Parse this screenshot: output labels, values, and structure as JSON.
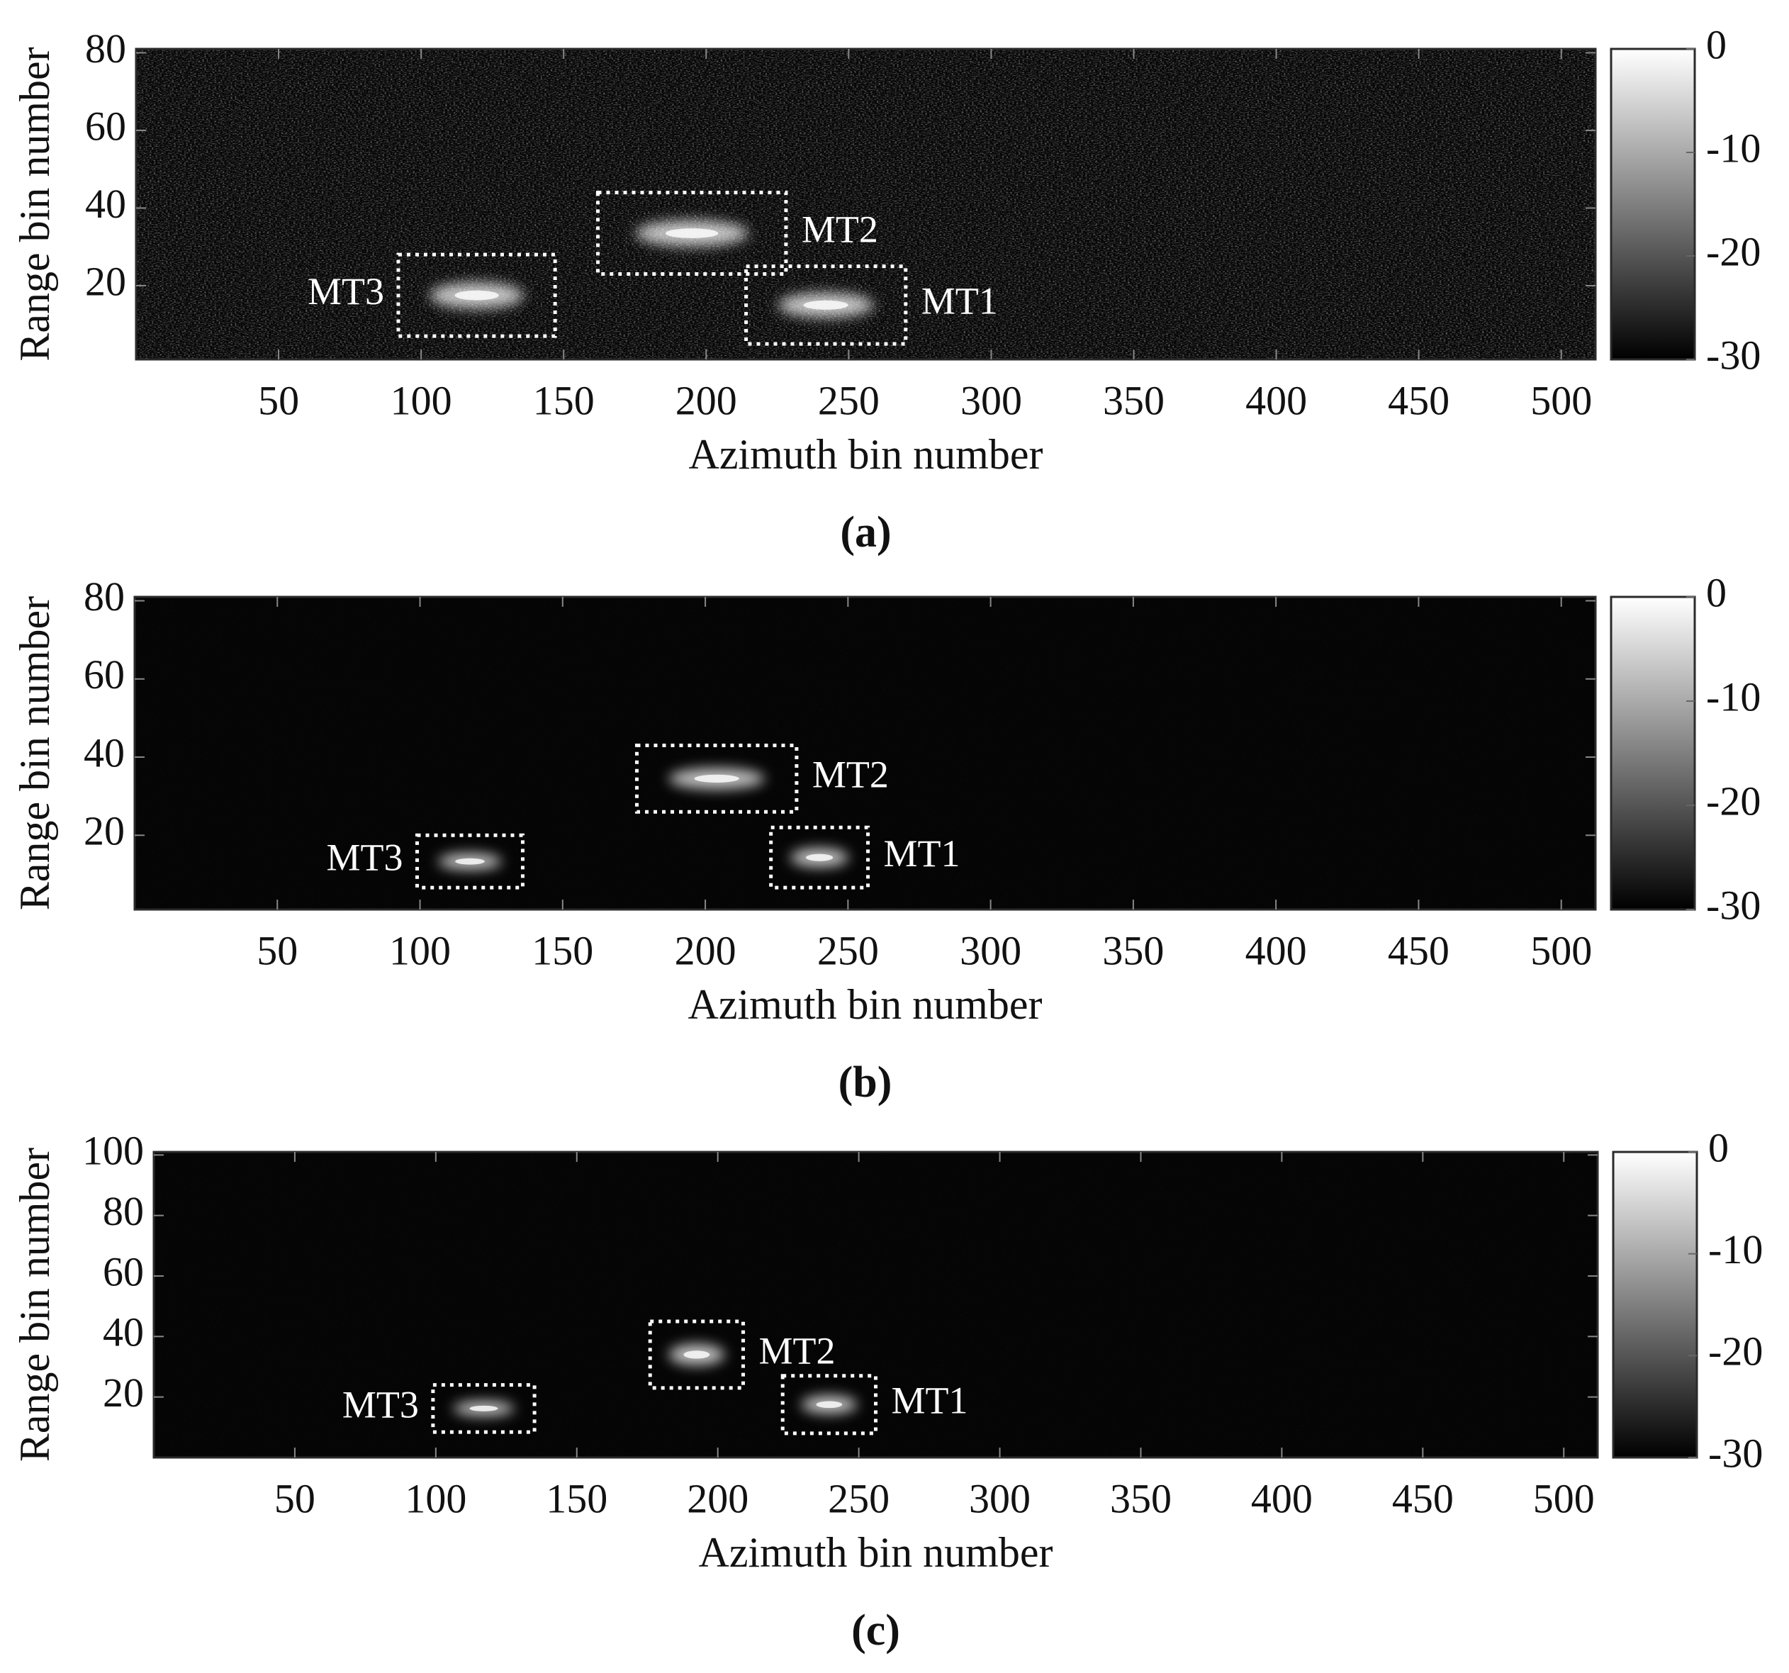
{
  "chart_data": [
    {
      "type": "heatmap",
      "caption": "(a)",
      "xlabel": "Azimuth bin number",
      "ylabel": "Range bin number",
      "xlim": [
        0,
        512
      ],
      "ylim": [
        1,
        81
      ],
      "xticks": [
        50,
        100,
        150,
        200,
        250,
        300,
        350,
        400,
        450,
        500
      ],
      "yticks": [
        20,
        40,
        60,
        80
      ],
      "colorbar": {
        "lim": [
          -30,
          0
        ],
        "ticks": [
          0,
          -10,
          -20,
          -30
        ]
      },
      "annotations": [
        {
          "text": "MT3",
          "xlim": [
            92,
            147
          ],
          "ylim": [
            7,
            28
          ],
          "label_side": "left"
        },
        {
          "text": "MT2",
          "xlim": [
            162,
            228
          ],
          "ylim": [
            23,
            44
          ],
          "label_side": "right"
        },
        {
          "text": "MT1",
          "xlim": [
            214,
            270
          ],
          "ylim": [
            5,
            25
          ],
          "label_side": "right"
        }
      ]
    },
    {
      "type": "heatmap",
      "caption": "(b)",
      "xlabel": "Azimuth bin number",
      "ylabel": "Range bin number",
      "xlim": [
        0,
        512
      ],
      "ylim": [
        1,
        81
      ],
      "xticks": [
        50,
        100,
        150,
        200,
        250,
        300,
        350,
        400,
        450,
        500
      ],
      "yticks": [
        20,
        40,
        60,
        80
      ],
      "colorbar": {
        "lim": [
          -30,
          0
        ],
        "ticks": [
          0,
          -10,
          -20,
          -30
        ]
      },
      "annotations": [
        {
          "text": "MT3",
          "xlim": [
            99,
            136
          ],
          "ylim": [
            6.6,
            20
          ],
          "label_side": "left"
        },
        {
          "text": "MT2",
          "xlim": [
            176,
            232
          ],
          "ylim": [
            26,
            43
          ],
          "label_side": "right"
        },
        {
          "text": "MT1",
          "xlim": [
            223,
            257
          ],
          "ylim": [
            6.6,
            22
          ],
          "label_side": "right"
        }
      ]
    },
    {
      "type": "heatmap",
      "caption": "(c)",
      "xlabel": "Azimuth bin number",
      "ylabel": "Range bin number",
      "xlim": [
        0,
        512
      ],
      "ylim": [
        0,
        101
      ],
      "xticks": [
        50,
        100,
        150,
        200,
        250,
        300,
        350,
        400,
        450,
        500
      ],
      "yticks": [
        20,
        40,
        60,
        80,
        100
      ],
      "colorbar": {
        "lim": [
          -30,
          0
        ],
        "ticks": [
          0,
          -10,
          -20,
          -30
        ]
      },
      "annotations": [
        {
          "text": "MT3",
          "xlim": [
            99,
            135
          ],
          "ylim": [
            8.4,
            24
          ],
          "label_side": "left"
        },
        {
          "text": "MT2",
          "xlim": [
            176,
            209
          ],
          "ylim": [
            23,
            45
          ],
          "label_side": "right"
        },
        {
          "text": "MT1",
          "xlim": [
            223,
            256
          ],
          "ylim": [
            8,
            27
          ],
          "label_side": "right"
        }
      ]
    }
  ]
}
